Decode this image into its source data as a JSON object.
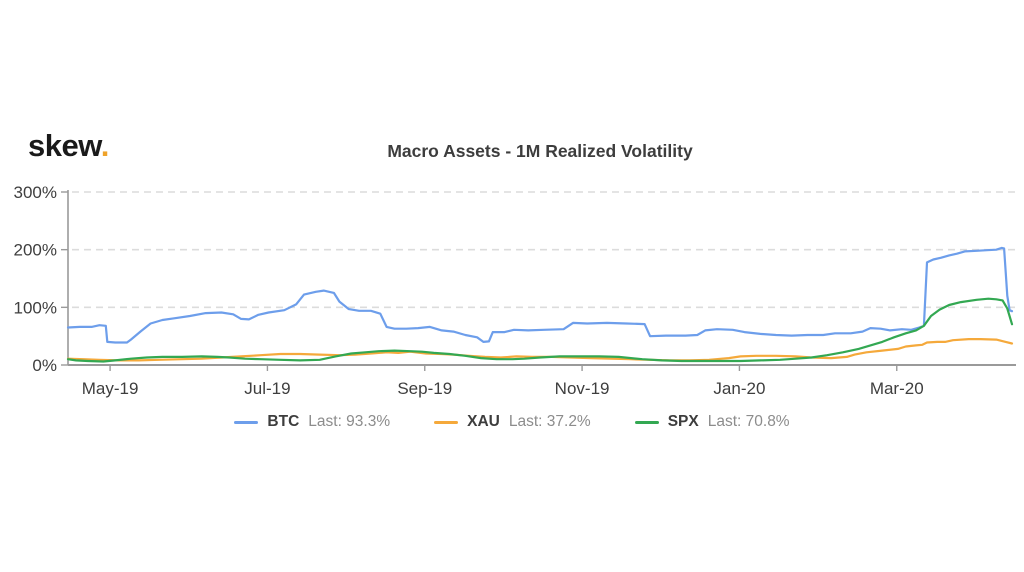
{
  "header": {
    "logo_text": "skew",
    "logo_dot": ".",
    "title": "Macro Assets - 1M Realized Volatility"
  },
  "colors": {
    "btc": "#6d9eeb",
    "xau": "#f5a93b",
    "spx": "#33a852",
    "axis": "#9a9a9a",
    "grid": "#dcdcdc",
    "label_text": "#3e3e3e",
    "muted_text": "#8c8c8c",
    "logo_dot": "#efa32a"
  },
  "chart_data": {
    "type": "line",
    "title": "Macro Assets - 1M Realized Volatility",
    "grid": "dashed-horizontal",
    "legend_position": "bottom",
    "x_axis": {
      "unit": "months since 2019-04-15 (timeline Apr-2019 to Apr-2020)",
      "range": [
        0,
        12
      ],
      "ticks": [
        {
          "m": 0.535,
          "label": "May-19"
        },
        {
          "m": 2.535,
          "label": "Jul-19"
        },
        {
          "m": 4.535,
          "label": "Sep-19"
        },
        {
          "m": 6.535,
          "label": "Nov-19"
        },
        {
          "m": 8.535,
          "label": "Jan-20"
        },
        {
          "m": 10.535,
          "label": "Mar-20"
        }
      ]
    },
    "y_axis": {
      "unit": "percent",
      "range": [
        0,
        300
      ],
      "ticks": [
        {
          "v": 0,
          "label": "0%"
        },
        {
          "v": 100,
          "label": "100%"
        },
        {
          "v": 200,
          "label": "200%"
        },
        {
          "v": 300,
          "label": "300%"
        }
      ]
    },
    "series": [
      {
        "name": "BTC",
        "color": "#6d9eeb",
        "last_value": 93.3,
        "points": [
          [
            0,
            65
          ],
          [
            0.15,
            66
          ],
          [
            0.3,
            66
          ],
          [
            0.4,
            69
          ],
          [
            0.48,
            68
          ],
          [
            0.5,
            40
          ],
          [
            0.6,
            39
          ],
          [
            0.75,
            39
          ],
          [
            0.8,
            44
          ],
          [
            0.92,
            58
          ],
          [
            1.05,
            72
          ],
          [
            1.2,
            78
          ],
          [
            1.35,
            81
          ],
          [
            1.55,
            85
          ],
          [
            1.75,
            90
          ],
          [
            1.95,
            91
          ],
          [
            2.1,
            88
          ],
          [
            2.2,
            80
          ],
          [
            2.3,
            79
          ],
          [
            2.42,
            87
          ],
          [
            2.55,
            91
          ],
          [
            2.75,
            95
          ],
          [
            2.9,
            105
          ],
          [
            3.0,
            122
          ],
          [
            3.15,
            127
          ],
          [
            3.25,
            129
          ],
          [
            3.38,
            125
          ],
          [
            3.45,
            110
          ],
          [
            3.57,
            97
          ],
          [
            3.7,
            94
          ],
          [
            3.85,
            94
          ],
          [
            3.97,
            89
          ],
          [
            4.05,
            66
          ],
          [
            4.15,
            63
          ],
          [
            4.3,
            63
          ],
          [
            4.45,
            64
          ],
          [
            4.6,
            66
          ],
          [
            4.75,
            60
          ],
          [
            4.9,
            58
          ],
          [
            5.05,
            52
          ],
          [
            5.2,
            48
          ],
          [
            5.28,
            40
          ],
          [
            5.35,
            41
          ],
          [
            5.4,
            57
          ],
          [
            5.55,
            57
          ],
          [
            5.67,
            61
          ],
          [
            5.85,
            60
          ],
          [
            6.05,
            61
          ],
          [
            6.3,
            62
          ],
          [
            6.42,
            73
          ],
          [
            6.6,
            72
          ],
          [
            6.85,
            73
          ],
          [
            7.1,
            72
          ],
          [
            7.33,
            71
          ],
          [
            7.4,
            50
          ],
          [
            7.6,
            51
          ],
          [
            7.85,
            51
          ],
          [
            8.0,
            52
          ],
          [
            8.1,
            60
          ],
          [
            8.25,
            62
          ],
          [
            8.45,
            61
          ],
          [
            8.6,
            57
          ],
          [
            8.8,
            54
          ],
          [
            9.0,
            52
          ],
          [
            9.2,
            51
          ],
          [
            9.4,
            52
          ],
          [
            9.6,
            52
          ],
          [
            9.75,
            55
          ],
          [
            9.95,
            55
          ],
          [
            10.1,
            58
          ],
          [
            10.2,
            64
          ],
          [
            10.33,
            63
          ],
          [
            10.45,
            60
          ],
          [
            10.6,
            62
          ],
          [
            10.72,
            61
          ],
          [
            10.82,
            65
          ],
          [
            10.88,
            68
          ],
          [
            10.92,
            178
          ],
          [
            11.0,
            183
          ],
          [
            11.1,
            186
          ],
          [
            11.2,
            190
          ],
          [
            11.3,
            193
          ],
          [
            11.4,
            197
          ],
          [
            11.55,
            198
          ],
          [
            11.68,
            199
          ],
          [
            11.8,
            200
          ],
          [
            11.87,
            203
          ],
          [
            11.9,
            202
          ],
          [
            11.94,
            120
          ],
          [
            11.97,
            95
          ],
          [
            12,
            93.3
          ]
        ]
      },
      {
        "name": "XAU",
        "color": "#f5a93b",
        "last_value": 37.2,
        "points": [
          [
            0,
            11
          ],
          [
            0.2,
            10
          ],
          [
            0.4,
            9
          ],
          [
            0.65,
            8
          ],
          [
            0.9,
            8
          ],
          [
            1.15,
            9
          ],
          [
            1.45,
            10
          ],
          [
            1.7,
            11
          ],
          [
            1.95,
            13
          ],
          [
            2.2,
            15
          ],
          [
            2.45,
            17
          ],
          [
            2.7,
            19
          ],
          [
            2.95,
            19
          ],
          [
            3.2,
            18
          ],
          [
            3.45,
            17
          ],
          [
            3.65,
            18
          ],
          [
            3.85,
            20
          ],
          [
            4.05,
            22
          ],
          [
            4.2,
            21
          ],
          [
            4.35,
            23
          ],
          [
            4.55,
            20
          ],
          [
            4.75,
            19
          ],
          [
            4.9,
            18
          ],
          [
            5.1,
            16
          ],
          [
            5.3,
            14
          ],
          [
            5.5,
            13
          ],
          [
            5.7,
            15
          ],
          [
            5.9,
            14
          ],
          [
            6.15,
            14
          ],
          [
            6.4,
            13
          ],
          [
            6.65,
            12
          ],
          [
            6.9,
            11
          ],
          [
            7.15,
            10
          ],
          [
            7.4,
            9
          ],
          [
            7.65,
            8
          ],
          [
            7.9,
            8
          ],
          [
            8.15,
            9
          ],
          [
            8.4,
            12
          ],
          [
            8.55,
            15
          ],
          [
            8.75,
            16
          ],
          [
            9.0,
            16
          ],
          [
            9.25,
            15
          ],
          [
            9.45,
            13
          ],
          [
            9.7,
            12
          ],
          [
            9.9,
            14
          ],
          [
            10.0,
            18
          ],
          [
            10.15,
            22
          ],
          [
            10.35,
            25
          ],
          [
            10.55,
            28
          ],
          [
            10.65,
            32
          ],
          [
            10.78,
            34
          ],
          [
            10.86,
            35
          ],
          [
            10.92,
            39
          ],
          [
            11.05,
            40
          ],
          [
            11.15,
            40
          ],
          [
            11.25,
            43
          ],
          [
            11.45,
            45
          ],
          [
            11.6,
            45
          ],
          [
            11.8,
            44
          ],
          [
            11.92,
            40
          ],
          [
            12,
            37.2
          ]
        ]
      },
      {
        "name": "SPX",
        "color": "#33a852",
        "last_value": 70.8,
        "points": [
          [
            0,
            10
          ],
          [
            0.1,
            8
          ],
          [
            0.25,
            7
          ],
          [
            0.45,
            6
          ],
          [
            0.6,
            8
          ],
          [
            0.8,
            11
          ],
          [
            1.0,
            13
          ],
          [
            1.2,
            14
          ],
          [
            1.45,
            14
          ],
          [
            1.7,
            15
          ],
          [
            1.9,
            14
          ],
          [
            2.05,
            13
          ],
          [
            2.25,
            11
          ],
          [
            2.45,
            10
          ],
          [
            2.7,
            9
          ],
          [
            2.95,
            8
          ],
          [
            3.2,
            9
          ],
          [
            3.4,
            15
          ],
          [
            3.6,
            20
          ],
          [
            3.78,
            22
          ],
          [
            3.95,
            24
          ],
          [
            4.15,
            25
          ],
          [
            4.35,
            24
          ],
          [
            4.5,
            23
          ],
          [
            4.65,
            21
          ],
          [
            4.85,
            19
          ],
          [
            5.05,
            16
          ],
          [
            5.25,
            12
          ],
          [
            5.45,
            10
          ],
          [
            5.65,
            10
          ],
          [
            5.8,
            11
          ],
          [
            6.0,
            13
          ],
          [
            6.25,
            15
          ],
          [
            6.5,
            15
          ],
          [
            6.75,
            15
          ],
          [
            7.0,
            14
          ],
          [
            7.3,
            10
          ],
          [
            7.55,
            8
          ],
          [
            7.8,
            7
          ],
          [
            8.05,
            7
          ],
          [
            8.3,
            7
          ],
          [
            8.55,
            7
          ],
          [
            8.8,
            8
          ],
          [
            9.05,
            9
          ],
          [
            9.25,
            11
          ],
          [
            9.45,
            13
          ],
          [
            9.65,
            17
          ],
          [
            9.85,
            22
          ],
          [
            10.05,
            28
          ],
          [
            10.2,
            34
          ],
          [
            10.35,
            40
          ],
          [
            10.5,
            48
          ],
          [
            10.65,
            55
          ],
          [
            10.78,
            60
          ],
          [
            10.88,
            68
          ],
          [
            10.97,
            85
          ],
          [
            11.08,
            96
          ],
          [
            11.2,
            104
          ],
          [
            11.35,
            109
          ],
          [
            11.55,
            113
          ],
          [
            11.7,
            115
          ],
          [
            11.8,
            114
          ],
          [
            11.88,
            112
          ],
          [
            11.94,
            98
          ],
          [
            12,
            70.8
          ]
        ]
      }
    ],
    "legend": {
      "items": [
        {
          "name": "BTC",
          "last": "Last: 93.3%",
          "color": "#6d9eeb"
        },
        {
          "name": "XAU",
          "last": "Last: 37.2%",
          "color": "#f5a93b"
        },
        {
          "name": "SPX",
          "last": "Last: 70.8%",
          "color": "#33a852"
        }
      ]
    }
  }
}
